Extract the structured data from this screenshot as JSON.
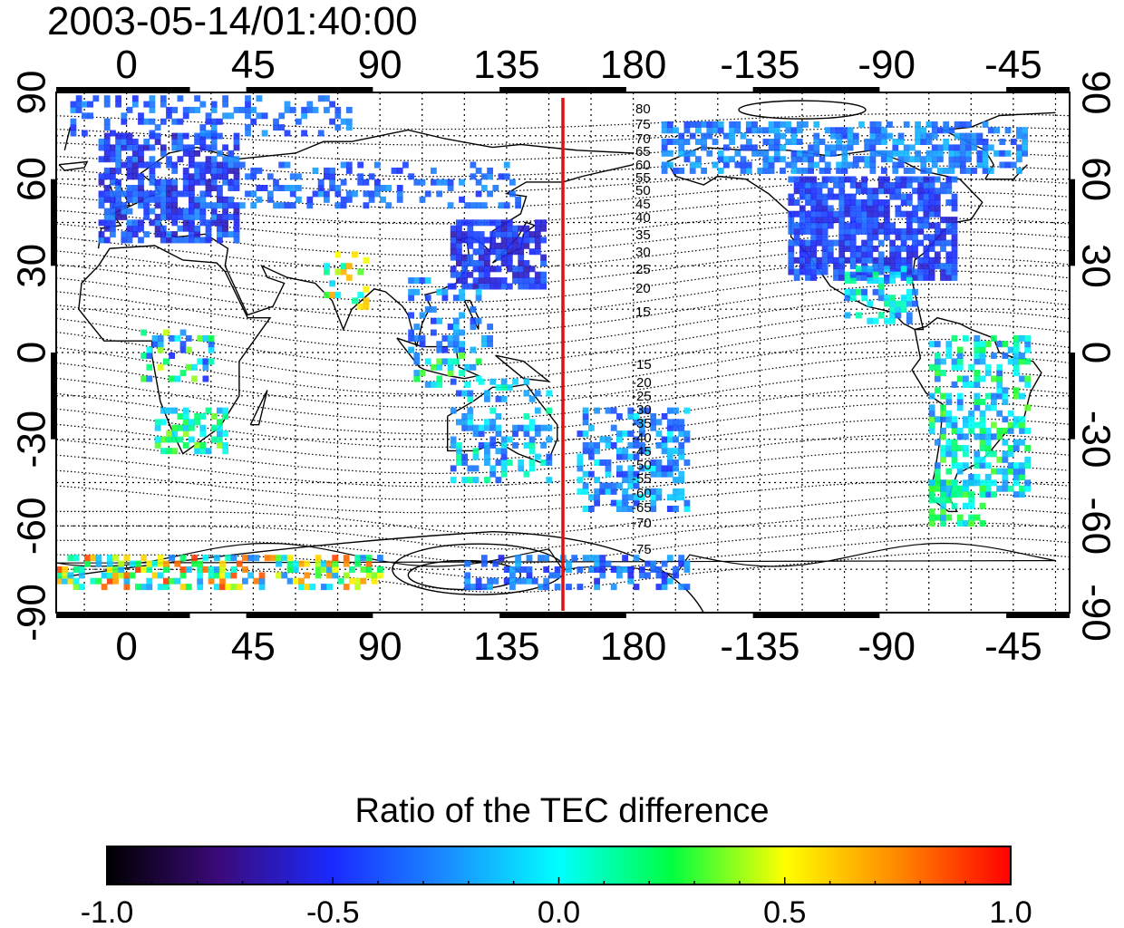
{
  "map": {
    "timestamp": "2003-05-14/01:40:00",
    "lon_ticks": [
      "0",
      "45",
      "90",
      "135",
      "180",
      "-135",
      "-90",
      "-45"
    ],
    "lat_ticks": [
      "90",
      "60",
      "30",
      "0",
      "-30",
      "-60",
      "-90"
    ],
    "contour_labels_north": [
      "80",
      "75",
      "70",
      "65",
      "60",
      "55",
      "50",
      "45",
      "40",
      "35",
      "30",
      "25",
      "20",
      "15"
    ],
    "contour_labels_south": [
      "-15",
      "-20",
      "-25",
      "-30",
      "-35",
      "-40",
      "-45",
      "-50",
      "-55",
      "-60",
      "-65",
      "-70",
      "-75"
    ],
    "reference_meridian_lon": 155,
    "colors": {
      "reference_line": "#e01010",
      "land_outline": "#000000",
      "grid": "#000000"
    }
  },
  "colorbar": {
    "title": "Ratio of the TEC difference",
    "tick_labels": [
      "-1.0",
      "-0.5",
      "0.0",
      "0.5",
      "1.0"
    ],
    "range": [
      -1.0,
      1.0
    ],
    "colormap": [
      "#000000",
      "#3a0a7a",
      "#1a2aff",
      "#1a8cff",
      "#00ffff",
      "#00ff40",
      "#ffff00",
      "#ff8800",
      "#ff0000"
    ]
  }
}
